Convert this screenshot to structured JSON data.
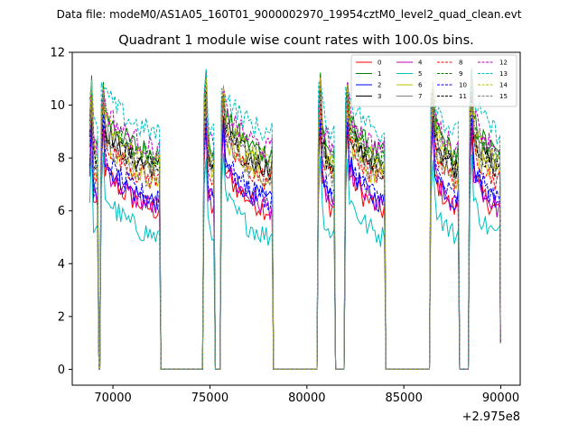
{
  "chart_data": {
    "type": "line",
    "suptitle": "Data file: modeM0/AS1A05_160T01_9000002970_19954cztM0_level2_quad_clean.evt",
    "title": "Quadrant 1 module wise count rates with 100.0s bins.",
    "xlabel": "",
    "ylabel": "",
    "x_offset_label": "+2.975e8",
    "xlim": [
      67900,
      91000
    ],
    "ylim": [
      -0.6,
      12
    ],
    "xticks": [
      70000,
      75000,
      80000,
      85000,
      90000
    ],
    "xtick_labels": [
      "70000",
      "75000",
      "80000",
      "85000",
      "90000"
    ],
    "yticks": [
      0,
      2,
      4,
      6,
      8,
      10,
      12
    ],
    "ytick_labels": [
      "0",
      "2",
      "4",
      "6",
      "8",
      "10",
      "12"
    ],
    "legend_position": "top-right",
    "orbits": [
      {
        "start": 68800,
        "end": 69200,
        "spike_to": 11.0
      },
      {
        "start": 69400,
        "end": 72400,
        "spike_to": 10.7
      },
      {
        "start": 74700,
        "end": 75200,
        "spike_to": 11.2
      },
      {
        "start": 75600,
        "end": 78200,
        "spike_to": 10.6
      },
      {
        "start": 80600,
        "end": 81400,
        "spike_to": 11.1
      },
      {
        "start": 82000,
        "end": 84000,
        "spike_to": 10.7
      },
      {
        "start": 86400,
        "end": 87800,
        "spike_to": 10.8
      },
      {
        "start": 88400,
        "end": 89950,
        "spike_to": 11.3
      }
    ],
    "series": [
      {
        "name": "0",
        "color": "#ff0000",
        "dash": "solid",
        "level": 6.5
      },
      {
        "name": "1",
        "color": "#008000",
        "dash": "solid",
        "level": 8.6
      },
      {
        "name": "2",
        "color": "#0000ff",
        "dash": "solid",
        "level": 6.8
      },
      {
        "name": "3",
        "color": "#000000",
        "dash": "solid",
        "level": 8.1
      },
      {
        "name": "4",
        "color": "#bf00bf",
        "dash": "solid",
        "level": 6.6
      },
      {
        "name": "5",
        "color": "#00bfbf",
        "dash": "solid",
        "level": 5.5
      },
      {
        "name": "6",
        "color": "#bfbf00",
        "dash": "solid",
        "level": 7.7
      },
      {
        "name": "7",
        "color": "#808080",
        "dash": "solid",
        "level": 8.2
      },
      {
        "name": "8",
        "color": "#ff0000",
        "dash": "dashed",
        "level": 7.6
      },
      {
        "name": "9",
        "color": "#008000",
        "dash": "dashed",
        "level": 8.5
      },
      {
        "name": "10",
        "color": "#0000ff",
        "dash": "dashed",
        "level": 6.9
      },
      {
        "name": "11",
        "color": "#000000",
        "dash": "dashed",
        "level": 8.0
      },
      {
        "name": "12",
        "color": "#bf00bf",
        "dash": "dashed",
        "level": 8.8
      },
      {
        "name": "13",
        "color": "#00bfbf",
        "dash": "dashed",
        "level": 9.4
      },
      {
        "name": "14",
        "color": "#bfbf00",
        "dash": "dashed",
        "level": 8.3
      },
      {
        "name": "15",
        "color": "#808080",
        "dash": "dashed",
        "level": 7.7
      }
    ]
  }
}
